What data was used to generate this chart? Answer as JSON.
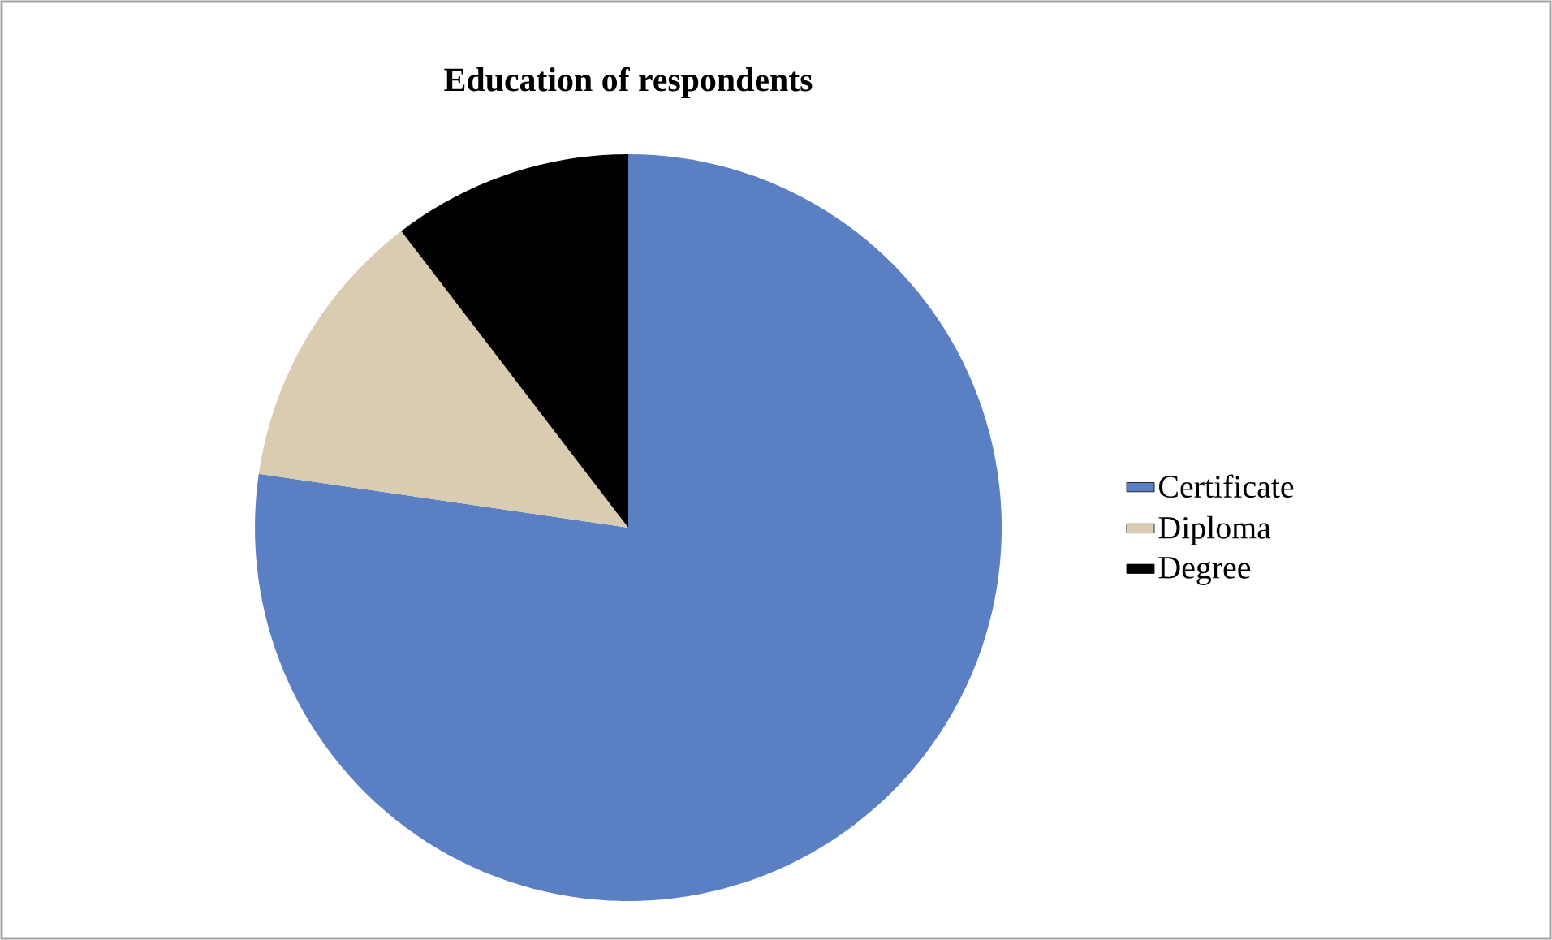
{
  "chart_data": {
    "type": "pie",
    "title": "Education of respondents",
    "categories": [
      "Certificate",
      "Diploma",
      "Degree"
    ],
    "values": [
      77.3,
      12.3,
      10.4
    ],
    "colors": [
      "#5a7fc2",
      "#d9ccb0",
      "#000000"
    ],
    "legend": "right"
  }
}
